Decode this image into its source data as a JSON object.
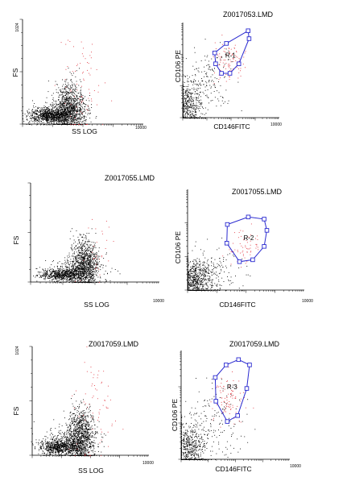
{
  "chart_data": [
    {
      "type": "scatter",
      "title": "",
      "xlabel": "SS LOG",
      "ylabel": "FS",
      "x_scale": "log",
      "xlim": [
        1,
        10000
      ],
      "ylim": [
        0,
        1024
      ],
      "x_tick_labels": [
        "10000"
      ],
      "y_tick_labels": [
        "1024"
      ],
      "series": [
        {
          "color": "#000000",
          "clusters": [
            {
              "x_log": 0.9,
              "y": 85,
              "spread_x": 0.35,
              "spread_y": 35,
              "count": 800
            },
            {
              "x_log": 1.55,
              "y": 150,
              "spread_x": 0.25,
              "spread_y": 120,
              "count": 1000
            },
            {
              "x_log": 1.2,
              "y": 110,
              "spread_x": 0.5,
              "spread_y": 60,
              "count": 350
            }
          ]
        },
        {
          "color": "#e0303a",
          "clusters": [
            {
              "x_log": 2.0,
              "y": 380,
              "spread_x": 0.4,
              "spread_y": 260,
              "count": 80
            }
          ]
        }
      ]
    },
    {
      "type": "scatter",
      "title": "Z0017053.LMD",
      "xlabel": "CD146FITC",
      "ylabel": "CD106 PE",
      "x_scale": "log",
      "y_scale": "log",
      "xlim": [
        1,
        10000
      ],
      "ylim": [
        1,
        1000
      ],
      "x_tick_labels": [
        "10000"
      ],
      "y_tick_labels": [],
      "gate": {
        "label": "R-1",
        "color": "#2a2ad0",
        "vertices": [
          [
            21,
            110
          ],
          [
            64,
            220
          ],
          [
            510,
            550
          ],
          [
            560,
            310
          ],
          [
            210,
            50
          ],
          [
            90,
            25
          ],
          [
            40,
            25
          ],
          [
            23,
            50
          ]
        ]
      },
      "series": [
        {
          "color": "#000000",
          "clusters": [
            {
              "x_log": 0.25,
              "y_log": 0.4,
              "spread_x": 0.3,
              "spread_y": 0.4,
              "count": 500
            },
            {
              "x_log": 1.1,
              "y_log": 1.2,
              "spread_x": 0.5,
              "spread_y": 0.5,
              "count": 150
            }
          ]
        },
        {
          "color": "#e0303a",
          "clusters": [
            {
              "x_log": 1.9,
              "y_log": 1.8,
              "spread_x": 0.3,
              "spread_y": 0.3,
              "count": 90
            }
          ]
        }
      ]
    },
    {
      "type": "scatter",
      "title": "Z0017055.LMD",
      "xlabel": "SS LOG",
      "ylabel": "FS",
      "x_scale": "log",
      "xlim": [
        1,
        10000
      ],
      "ylim": [
        0,
        1024
      ],
      "x_tick_labels": [
        "10000"
      ],
      "y_tick_labels": [],
      "series": [
        {
          "color": "#000000",
          "clusters": [
            {
              "x_log": 1.0,
              "y": 75,
              "spread_x": 0.35,
              "spread_y": 30,
              "count": 600
            },
            {
              "x_log": 1.65,
              "y": 180,
              "spread_x": 0.22,
              "spread_y": 130,
              "count": 1000
            },
            {
              "x_log": 1.3,
              "y": 120,
              "spread_x": 0.5,
              "spread_y": 60,
              "count": 300
            }
          ]
        },
        {
          "color": "#e0303a",
          "clusters": [
            {
              "x_log": 2.05,
              "y": 350,
              "spread_x": 0.3,
              "spread_y": 200,
              "count": 30
            }
          ]
        }
      ]
    },
    {
      "type": "scatter",
      "title": "Z0017055.LMD",
      "xlabel": "CD146FITC",
      "ylabel": "CD106 PE",
      "x_scale": "log",
      "y_scale": "log",
      "xlim": [
        1,
        10000
      ],
      "ylim": [
        1,
        1000
      ],
      "x_tick_labels": [
        "10000"
      ],
      "y_tick_labels": [],
      "gate": {
        "label": "R-2",
        "color": "#2a2ad0",
        "vertices": [
          [
            23,
            90
          ],
          [
            120,
            150
          ],
          [
            420,
            130
          ],
          [
            520,
            60
          ],
          [
            420,
            20
          ],
          [
            170,
            8
          ],
          [
            60,
            7
          ],
          [
            22,
            25
          ]
        ]
      },
      "series": [
        {
          "color": "#000000",
          "clusters": [
            {
              "x_log": 0.25,
              "y_log": 0.3,
              "spread_x": 0.3,
              "spread_y": 0.3,
              "count": 700
            },
            {
              "x_log": 1.0,
              "y_log": 0.5,
              "spread_x": 0.5,
              "spread_y": 0.35,
              "count": 150
            }
          ]
        },
        {
          "color": "#e0303a",
          "clusters": [
            {
              "x_log": 1.9,
              "y_log": 1.3,
              "spread_x": 0.3,
              "spread_y": 0.3,
              "count": 60
            }
          ]
        }
      ]
    },
    {
      "type": "scatter",
      "title": "Z0017059.LMD",
      "xlabel": "SS LOG",
      "ylabel": "FS",
      "x_scale": "log",
      "xlim": [
        1,
        10000
      ],
      "ylim": [
        0,
        1024
      ],
      "x_tick_labels": [
        "10000"
      ],
      "y_tick_labels": [
        "1024"
      ],
      "series": [
        {
          "color": "#000000",
          "clusters": [
            {
              "x_log": 0.95,
              "y": 80,
              "spread_x": 0.35,
              "spread_y": 35,
              "count": 700
            },
            {
              "x_log": 1.65,
              "y": 180,
              "spread_x": 0.22,
              "spread_y": 140,
              "count": 1000
            },
            {
              "x_log": 1.3,
              "y": 130,
              "spread_x": 0.5,
              "spread_y": 70,
              "count": 300
            }
          ]
        },
        {
          "color": "#e0303a",
          "clusters": [
            {
              "x_log": 2.1,
              "y": 450,
              "spread_x": 0.35,
              "spread_y": 280,
              "count": 70
            }
          ]
        }
      ]
    },
    {
      "type": "scatter",
      "title": "Z0017059.LMD",
      "xlabel": "CD146FITC",
      "ylabel": "CD106 PE",
      "x_scale": "log",
      "y_scale": "log",
      "xlim": [
        1,
        10000
      ],
      "ylim": [
        1,
        1000
      ],
      "x_tick_labels": [
        "10000"
      ],
      "y_tick_labels": [],
      "gate": {
        "label": "R-3",
        "color": "#2a2ad0",
        "vertices": [
          [
            18,
            180
          ],
          [
            45,
            400
          ],
          [
            130,
            560
          ],
          [
            330,
            400
          ],
          [
            260,
            90
          ],
          [
            120,
            16
          ],
          [
            50,
            11
          ],
          [
            19,
            40
          ]
        ]
      },
      "series": [
        {
          "color": "#000000",
          "clusters": [
            {
              "x_log": 0.3,
              "y_log": 0.3,
              "spread_x": 0.3,
              "spread_y": 0.35,
              "count": 600
            },
            {
              "x_log": 1.2,
              "y_log": 1.0,
              "spread_x": 0.5,
              "spread_y": 0.5,
              "count": 150
            }
          ]
        },
        {
          "color": "#e0303a",
          "clusters": [
            {
              "x_log": 1.8,
              "y_log": 1.6,
              "spread_x": 0.35,
              "spread_y": 0.35,
              "count": 90
            }
          ]
        }
      ]
    }
  ]
}
